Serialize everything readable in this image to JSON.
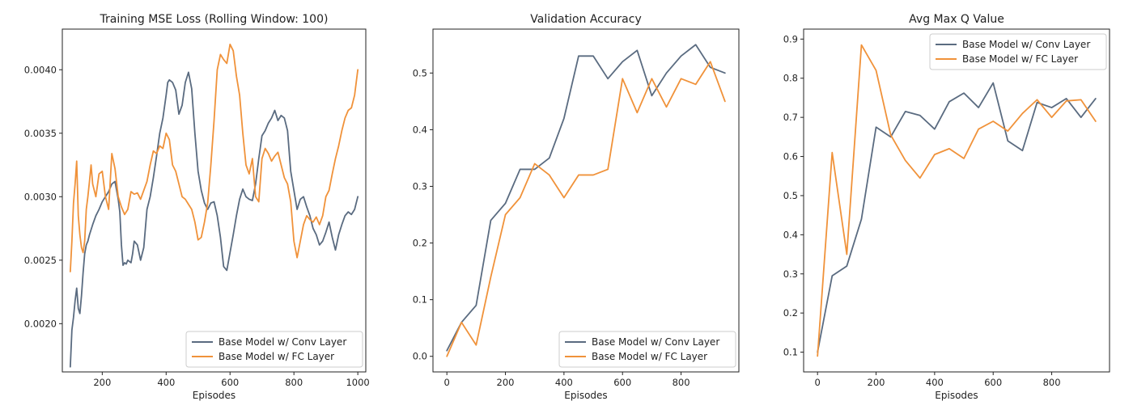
{
  "figure": {
    "colors": {
      "conv": "#5a6b80",
      "fc": "#f0923a"
    }
  },
  "chart_data": [
    {
      "type": "line",
      "title": "Training MSE Loss (Rolling Window: 100)",
      "xlabel": "Episodes",
      "ylabel": "",
      "xlim": [
        75,
        1025
      ],
      "ylim": [
        0.00162,
        0.00432
      ],
      "xticks": [
        200,
        400,
        600,
        800,
        1000
      ],
      "xtick_labels": [
        "200",
        "400",
        "600",
        "800",
        "1000"
      ],
      "yticks": [
        0.002,
        0.0025,
        0.003,
        0.0035,
        0.004
      ],
      "ytick_labels": [
        "0.0020",
        "0.0025",
        "0.0030",
        "0.0035",
        "0.0040"
      ],
      "legend": "lower-right",
      "series": [
        {
          "name": "Base Model w/ Conv Layer",
          "color": "#5a6b80",
          "x": [
            100,
            105,
            110,
            115,
            120,
            125,
            130,
            135,
            140,
            145,
            150,
            155,
            160,
            165,
            170,
            180,
            190,
            200,
            210,
            220,
            230,
            240,
            250,
            255,
            260,
            265,
            270,
            275,
            280,
            290,
            295,
            300,
            310,
            320,
            330,
            340,
            350,
            360,
            370,
            380,
            390,
            400,
            405,
            410,
            420,
            430,
            440,
            450,
            460,
            470,
            480,
            490,
            500,
            510,
            520,
            530,
            540,
            550,
            560,
            570,
            580,
            590,
            600,
            610,
            620,
            630,
            640,
            650,
            660,
            670,
            680,
            690,
            700,
            710,
            720,
            730,
            740,
            750,
            760,
            770,
            780,
            790,
            800,
            810,
            820,
            830,
            840,
            850,
            860,
            870,
            880,
            890,
            900,
            910,
            920,
            930,
            940,
            950,
            960,
            970,
            980,
            990,
            1000
          ],
          "y": [
            0.00166,
            0.00195,
            0.00205,
            0.00218,
            0.00228,
            0.00212,
            0.00208,
            0.00222,
            0.0024,
            0.00255,
            0.00262,
            0.00265,
            0.0027,
            0.00274,
            0.00278,
            0.00285,
            0.0029,
            0.00296,
            0.003,
            0.00304,
            0.0031,
            0.00312,
            0.00298,
            0.00288,
            0.00262,
            0.00246,
            0.00248,
            0.00247,
            0.0025,
            0.00248,
            0.00255,
            0.00265,
            0.00262,
            0.0025,
            0.0026,
            0.0029,
            0.003,
            0.00315,
            0.00332,
            0.0035,
            0.00362,
            0.0038,
            0.0039,
            0.00392,
            0.0039,
            0.00384,
            0.00365,
            0.00372,
            0.0039,
            0.00398,
            0.00385,
            0.0035,
            0.0032,
            0.00305,
            0.00295,
            0.0029,
            0.00295,
            0.00296,
            0.00285,
            0.00268,
            0.00245,
            0.00242,
            0.00256,
            0.0027,
            0.00285,
            0.00298,
            0.00306,
            0.003,
            0.00298,
            0.00297,
            0.0031,
            0.0033,
            0.00348,
            0.00352,
            0.00358,
            0.00362,
            0.00368,
            0.0036,
            0.00364,
            0.00362,
            0.00352,
            0.0032,
            0.00305,
            0.0029,
            0.00298,
            0.003,
            0.00292,
            0.00285,
            0.00275,
            0.0027,
            0.00262,
            0.00265,
            0.00272,
            0.0028,
            0.00268,
            0.00258,
            0.0027,
            0.00278,
            0.00285,
            0.00288,
            0.00286,
            0.0029,
            0.003
          ]
        },
        {
          "name": "Base Model w/ FC Layer",
          "color": "#f0923a",
          "x": [
            100,
            105,
            110,
            115,
            120,
            125,
            130,
            135,
            140,
            145,
            150,
            155,
            160,
            165,
            170,
            180,
            190,
            200,
            210,
            220,
            230,
            240,
            250,
            260,
            270,
            280,
            290,
            300,
            310,
            320,
            330,
            340,
            350,
            360,
            370,
            380,
            390,
            400,
            410,
            420,
            430,
            440,
            450,
            460,
            470,
            480,
            490,
            500,
            510,
            520,
            530,
            540,
            550,
            560,
            570,
            580,
            590,
            600,
            610,
            620,
            630,
            640,
            650,
            660,
            670,
            680,
            690,
            700,
            710,
            720,
            730,
            740,
            750,
            760,
            770,
            780,
            790,
            800,
            810,
            820,
            830,
            840,
            850,
            860,
            870,
            880,
            890,
            900,
            910,
            920,
            930,
            940,
            950,
            960,
            970,
            980,
            990,
            1000
          ],
          "y": [
            0.00241,
            0.00265,
            0.00295,
            0.0031,
            0.00328,
            0.00285,
            0.0027,
            0.0026,
            0.00256,
            0.00265,
            0.0029,
            0.003,
            0.00312,
            0.00325,
            0.0031,
            0.003,
            0.00318,
            0.0032,
            0.003,
            0.0029,
            0.00334,
            0.00322,
            0.003,
            0.00292,
            0.00286,
            0.0029,
            0.00304,
            0.00302,
            0.00303,
            0.00298,
            0.00305,
            0.00312,
            0.00325,
            0.00336,
            0.00334,
            0.0034,
            0.00338,
            0.0035,
            0.00345,
            0.00325,
            0.0032,
            0.0031,
            0.003,
            0.00298,
            0.00294,
            0.0029,
            0.0028,
            0.00266,
            0.00268,
            0.0028,
            0.00295,
            0.00325,
            0.0036,
            0.004,
            0.00412,
            0.00408,
            0.00405,
            0.0042,
            0.00415,
            0.00395,
            0.0038,
            0.0035,
            0.00325,
            0.00318,
            0.0033,
            0.003,
            0.00296,
            0.0033,
            0.00338,
            0.00334,
            0.00328,
            0.00332,
            0.00335,
            0.00325,
            0.00315,
            0.0031,
            0.00296,
            0.00265,
            0.00252,
            0.00265,
            0.00278,
            0.00285,
            0.00282,
            0.0028,
            0.00284,
            0.00278,
            0.00285,
            0.003,
            0.00305,
            0.00318,
            0.0033,
            0.0034,
            0.00352,
            0.00362,
            0.00368,
            0.0037,
            0.0038,
            0.004
          ]
        }
      ]
    },
    {
      "type": "line",
      "title": "Validation Accuracy",
      "xlabel": "Episodes",
      "ylabel": "",
      "xlim": [
        -47.5,
        997.5
      ],
      "ylim": [
        -0.0275,
        0.5775
      ],
      "xticks": [
        0,
        200,
        400,
        600,
        800
      ],
      "xtick_labels": [
        "0",
        "200",
        "400",
        "600",
        "800"
      ],
      "yticks": [
        0.0,
        0.1,
        0.2,
        0.3,
        0.4,
        0.5
      ],
      "ytick_labels": [
        "0.0",
        "0.1",
        "0.2",
        "0.3",
        "0.4",
        "0.5"
      ],
      "legend": "lower-right",
      "series": [
        {
          "name": "Base Model w/ Conv Layer",
          "color": "#5a6b80",
          "x": [
            0,
            50,
            100,
            150,
            200,
            250,
            300,
            350,
            400,
            450,
            500,
            550,
            600,
            650,
            700,
            750,
            800,
            850,
            900,
            950
          ],
          "y": [
            0.01,
            0.06,
            0.09,
            0.24,
            0.27,
            0.33,
            0.33,
            0.35,
            0.42,
            0.53,
            0.53,
            0.49,
            0.52,
            0.54,
            0.46,
            0.5,
            0.53,
            0.55,
            0.51,
            0.5
          ]
        },
        {
          "name": "Base Model w/ FC Layer",
          "color": "#f0923a",
          "x": [
            0,
            50,
            100,
            150,
            200,
            250,
            300,
            350,
            400,
            450,
            500,
            550,
            600,
            650,
            700,
            750,
            800,
            850,
            900,
            950
          ],
          "y": [
            0.0,
            0.06,
            0.02,
            0.14,
            0.25,
            0.28,
            0.34,
            0.32,
            0.28,
            0.32,
            0.32,
            0.33,
            0.49,
            0.43,
            0.49,
            0.44,
            0.49,
            0.48,
            0.52,
            0.45
          ]
        }
      ]
    },
    {
      "type": "line",
      "title": "Avg Max Q Value",
      "xlabel": "Episodes",
      "ylabel": "",
      "xlim": [
        -47.5,
        997.5
      ],
      "ylim": [
        0.0495,
        0.9255
      ],
      "xticks": [
        0,
        200,
        400,
        600,
        800
      ],
      "xtick_labels": [
        "0",
        "200",
        "400",
        "600",
        "800"
      ],
      "yticks": [
        0.1,
        0.2,
        0.3,
        0.4,
        0.5,
        0.6,
        0.7,
        0.8,
        0.9
      ],
      "ytick_labels": [
        "0.1",
        "0.2",
        "0.3",
        "0.4",
        "0.5",
        "0.6",
        "0.7",
        "0.8",
        "0.9"
      ],
      "legend": "upper-right",
      "series": [
        {
          "name": "Base Model w/ Conv Layer",
          "color": "#5a6b80",
          "x": [
            0,
            50,
            100,
            150,
            200,
            250,
            300,
            350,
            400,
            450,
            500,
            550,
            600,
            650,
            700,
            750,
            800,
            850,
            900,
            950
          ],
          "y": [
            0.1,
            0.295,
            0.32,
            0.44,
            0.675,
            0.65,
            0.715,
            0.705,
            0.67,
            0.74,
            0.762,
            0.725,
            0.788,
            0.64,
            0.615,
            0.738,
            0.725,
            0.748,
            0.7,
            0.748
          ]
        },
        {
          "name": "Base Model w/ FC Layer",
          "color": "#f0923a",
          "x": [
            0,
            50,
            100,
            150,
            200,
            250,
            300,
            350,
            400,
            450,
            500,
            550,
            600,
            650,
            700,
            750,
            800,
            850,
            900,
            950
          ],
          "y": [
            0.09,
            0.61,
            0.35,
            0.885,
            0.82,
            0.655,
            0.59,
            0.545,
            0.605,
            0.62,
            0.595,
            0.67,
            0.69,
            0.665,
            0.71,
            0.745,
            0.7,
            0.742,
            0.745,
            0.69
          ]
        }
      ]
    }
  ]
}
